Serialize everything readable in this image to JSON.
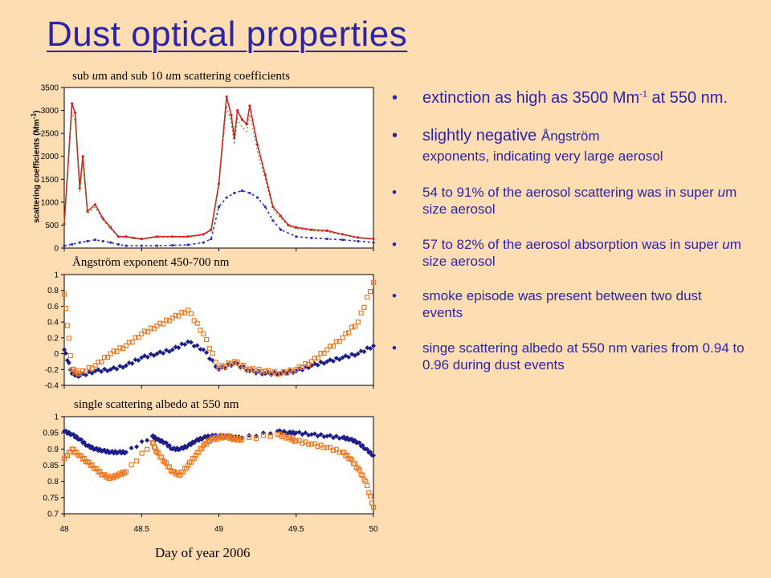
{
  "title": "Dust optical properties",
  "panels": {
    "p1_title": "sub um and sub 10 um scattering coefficients",
    "p1_ylabel": "scattering coefficients (Mm-1)",
    "p2_title": "Ångström exponent 450-700 nm",
    "p3_title": "single scattering albedo at 550 nm",
    "xlabel": "Day of year 2006"
  },
  "bullets": [
    {
      "text": "extinction as high as 3500 Mm-1 at 550 nm."
    },
    {
      "text": "slightly negative Ångström exponents, indicating very large aerosol"
    },
    {
      "text": "54 to 91% of the aerosol scattering was in super um size aerosol"
    },
    {
      "text": "57 to 82% of the aerosol absorption was in super um size aerosol"
    },
    {
      "text": "smoke episode was present between two dust events"
    },
    {
      "text": "singe scattering albedo at 550 nm varies from  0.94 to 0.96 during dust events"
    }
  ],
  "colors": {
    "title": "#2B24A8",
    "navy": "#1C1C8A",
    "orange": "#F07820",
    "red": "#E02020",
    "green": "#2A8A2A",
    "blue": "#3030C0"
  },
  "chart_data": [
    {
      "type": "line",
      "title": "sub um and sub 10 um scattering coefficients",
      "ylabel": "scattering coefficients (Mm-1)",
      "xlim": [
        48,
        50
      ],
      "ylim": [
        0,
        3500
      ],
      "yticks": [
        "0",
        "500",
        "1000",
        "1500",
        "2000",
        "2500",
        "3000",
        "3500"
      ],
      "series": [
        {
          "name": "sub 10 um",
          "color": "#E02020",
          "x": [
            48.0,
            48.05,
            48.07,
            48.1,
            48.12,
            48.15,
            48.2,
            48.25,
            48.3,
            48.35,
            48.4,
            48.45,
            48.5,
            48.6,
            48.7,
            48.8,
            48.9,
            48.95,
            49.0,
            49.05,
            49.08,
            49.1,
            49.12,
            49.15,
            49.18,
            49.2,
            49.25,
            49.3,
            49.35,
            49.4,
            49.45,
            49.5,
            49.6,
            49.7,
            49.8,
            49.9,
            50.0
          ],
          "y": [
            520,
            3150,
            2950,
            1300,
            2000,
            800,
            950,
            650,
            450,
            250,
            250,
            220,
            200,
            250,
            250,
            250,
            300,
            400,
            1400,
            3300,
            2900,
            2400,
            3000,
            2800,
            2700,
            3100,
            2250,
            1600,
            900,
            700,
            500,
            450,
            400,
            380,
            300,
            230,
            200
          ]
        },
        {
          "name": "sub um",
          "color": "#3030C0",
          "x": [
            48.0,
            48.05,
            48.1,
            48.15,
            48.2,
            48.25,
            48.3,
            48.35,
            48.4,
            48.5,
            48.6,
            48.7,
            48.8,
            48.9,
            48.95,
            49.0,
            49.05,
            49.1,
            49.15,
            49.2,
            49.25,
            49.3,
            49.35,
            49.4,
            49.5,
            49.6,
            49.7,
            49.8,
            49.9,
            50.0
          ],
          "y": [
            50,
            80,
            120,
            150,
            180,
            150,
            120,
            80,
            50,
            50,
            50,
            60,
            70,
            120,
            200,
            900,
            1100,
            1200,
            1250,
            1200,
            1100,
            900,
            600,
            400,
            250,
            220,
            200,
            180,
            150,
            120
          ]
        }
      ]
    },
    {
      "type": "scatter",
      "title": "Ångström exponent 450-700 nm",
      "xlim": [
        48,
        50
      ],
      "ylim": [
        -0.4,
        1
      ],
      "yticks": [
        "-0.4",
        "-0.2",
        "0",
        "0.2",
        "0.4",
        "0.6",
        "0.8",
        "1"
      ],
      "series": [
        {
          "name": "navy",
          "color": "#1C1C8A",
          "x": [
            48.0,
            48.05,
            48.1,
            48.2,
            48.3,
            48.4,
            48.5,
            48.6,
            48.7,
            48.8,
            48.9,
            49.0,
            49.1,
            49.2,
            49.3,
            49.4,
            49.5,
            49.6,
            49.7,
            49.8,
            49.9,
            50.0
          ],
          "y": [
            0.05,
            -0.25,
            -0.28,
            -0.22,
            -0.2,
            -0.15,
            -0.05,
            0.0,
            0.05,
            0.15,
            0.05,
            -0.2,
            -0.12,
            -0.22,
            -0.25,
            -0.25,
            -0.22,
            -0.15,
            -0.1,
            -0.05,
            0.0,
            0.1
          ]
        },
        {
          "name": "orange",
          "color": "#F07820",
          "x": [
            48.0,
            48.05,
            48.1,
            48.2,
            48.3,
            48.4,
            48.5,
            48.6,
            48.7,
            48.8,
            48.9,
            49.0,
            49.1,
            49.2,
            49.3,
            49.4,
            49.5,
            49.6,
            49.7,
            49.8,
            49.9,
            50.0
          ],
          "y": [
            0.75,
            -0.2,
            -0.25,
            -0.15,
            0.0,
            0.1,
            0.25,
            0.35,
            0.45,
            0.55,
            0.25,
            -0.18,
            -0.1,
            -0.2,
            -0.22,
            -0.25,
            -0.2,
            -0.1,
            0.05,
            0.2,
            0.4,
            0.9
          ]
        }
      ]
    },
    {
      "type": "scatter",
      "title": "single scattering albedo at 550 nm",
      "xlabel": "Day of year 2006",
      "xlim": [
        48,
        50
      ],
      "ylim": [
        0.7,
        1
      ],
      "yticks": [
        "0.7",
        "0.75",
        "0.8",
        "0.85",
        "0.9",
        "0.95",
        "1"
      ],
      "xticks": [
        "48",
        "48.5",
        "49",
        "49.5",
        "50"
      ],
      "series": [
        {
          "name": "navy",
          "color": "#1C1C8A",
          "x": [
            48.0,
            48.05,
            48.1,
            48.15,
            48.2,
            48.25,
            48.3,
            48.35,
            48.4,
            48.57,
            48.6,
            48.65,
            48.7,
            48.75,
            48.8,
            48.85,
            48.9,
            48.95,
            49.0,
            49.05,
            49.1,
            49.15,
            49.38,
            49.45,
            49.5,
            49.6,
            49.7,
            49.8,
            49.85,
            49.9,
            49.95,
            50.0
          ],
          "y": [
            0.955,
            0.945,
            0.93,
            0.91,
            0.9,
            0.895,
            0.89,
            0.89,
            0.89,
            0.94,
            0.93,
            0.92,
            0.9,
            0.9,
            0.91,
            0.925,
            0.935,
            0.94,
            0.94,
            0.94,
            0.935,
            0.935,
            0.955,
            0.95,
            0.95,
            0.945,
            0.94,
            0.935,
            0.93,
            0.92,
            0.9,
            0.88
          ]
        },
        {
          "name": "orange",
          "color": "#F07820",
          "x": [
            48.0,
            48.05,
            48.1,
            48.15,
            48.2,
            48.25,
            48.3,
            48.35,
            48.4,
            48.57,
            48.6,
            48.65,
            48.7,
            48.75,
            48.8,
            48.85,
            48.9,
            48.95,
            49.0,
            49.05,
            49.1,
            49.15,
            49.38,
            49.45,
            49.5,
            49.6,
            49.7,
            49.8,
            49.85,
            49.9,
            49.95,
            50.0
          ],
          "y": [
            0.87,
            0.9,
            0.88,
            0.86,
            0.84,
            0.82,
            0.81,
            0.82,
            0.83,
            0.92,
            0.89,
            0.86,
            0.83,
            0.82,
            0.85,
            0.88,
            0.91,
            0.93,
            0.935,
            0.94,
            0.93,
            0.93,
            0.945,
            0.935,
            0.925,
            0.915,
            0.905,
            0.89,
            0.87,
            0.84,
            0.8,
            0.72
          ]
        }
      ]
    }
  ]
}
